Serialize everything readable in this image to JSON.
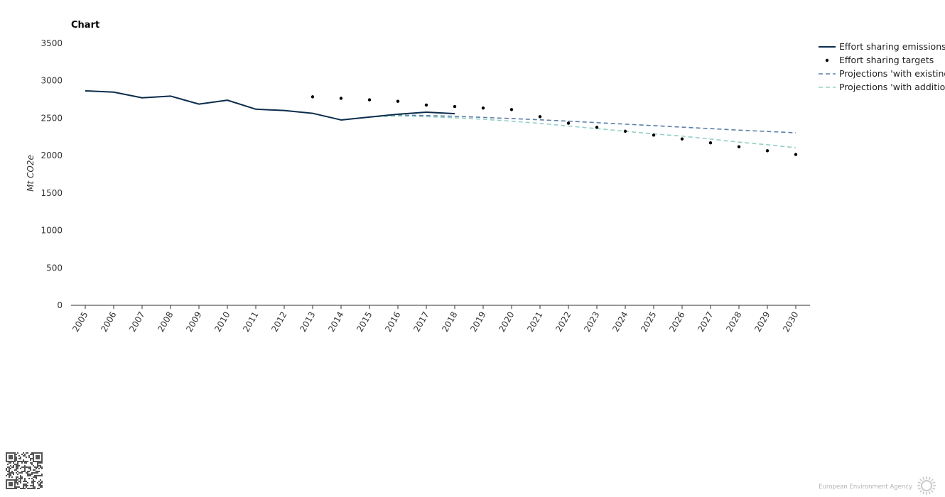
{
  "chart_data": {
    "type": "line",
    "title": "Chart",
    "ylabel": "Mt CO2e",
    "xlabel": "",
    "ylim": [
      0,
      3500
    ],
    "yticks": [
      0,
      500,
      1000,
      1500,
      2000,
      2500,
      3000,
      3500
    ],
    "grid": false,
    "legend_position": "right",
    "categories": [
      2005,
      2006,
      2007,
      2008,
      2009,
      2010,
      2011,
      2012,
      2013,
      2014,
      2015,
      2016,
      2017,
      2018,
      2019,
      2020,
      2021,
      2022,
      2023,
      2024,
      2025,
      2026,
      2027,
      2028,
      2029,
      2030
    ],
    "series": [
      {
        "name": "Effort sharing emissions",
        "style": "solid-line",
        "color": "#0b2d4c",
        "x": [
          2005,
          2006,
          2007,
          2008,
          2009,
          2010,
          2011,
          2012,
          2013,
          2014,
          2015,
          2016,
          2017,
          2018
        ],
        "values": [
          2865,
          2848,
          2772,
          2795,
          2688,
          2740,
          2620,
          2602,
          2565,
          2476,
          2515,
          2553,
          2580,
          2560
        ]
      },
      {
        "name": "Effort sharing targets",
        "style": "points",
        "color": "#000000",
        "x": [
          2013,
          2014,
          2015,
          2016,
          2017,
          2018,
          2019,
          2020,
          2021,
          2022,
          2023,
          2024,
          2025,
          2026,
          2027,
          2028,
          2029,
          2030
        ],
        "values": [
          2785,
          2765,
          2745,
          2725,
          2675,
          2655,
          2635,
          2615,
          2520,
          2432,
          2378,
          2325,
          2273,
          2222,
          2170,
          2118,
          2065,
          2015
        ]
      },
      {
        "name": "Projections 'with existing measures'",
        "style": "dashed-line",
        "color": "#5a7fa8",
        "x": [
          2015,
          2016,
          2017,
          2018,
          2019,
          2020,
          2021,
          2022,
          2023,
          2024,
          2025,
          2026,
          2027,
          2028,
          2029,
          2030
        ],
        "values": [
          2515,
          2540,
          2535,
          2525,
          2510,
          2495,
          2478,
          2460,
          2440,
          2420,
          2400,
          2380,
          2360,
          2340,
          2322,
          2305
        ]
      },
      {
        "name": "Projections 'with additional measures'",
        "style": "dashed-line",
        "color": "#95cfc6",
        "x": [
          2015,
          2016,
          2017,
          2018,
          2019,
          2020,
          2021,
          2022,
          2023,
          2024,
          2025,
          2026,
          2027,
          2028,
          2029,
          2030
        ],
        "values": [
          2515,
          2530,
          2520,
          2505,
          2485,
          2460,
          2430,
          2395,
          2360,
          2325,
          2290,
          2260,
          2220,
          2180,
          2145,
          2105
        ]
      }
    ]
  },
  "footer": {
    "source_label": "European Environment Agency"
  }
}
